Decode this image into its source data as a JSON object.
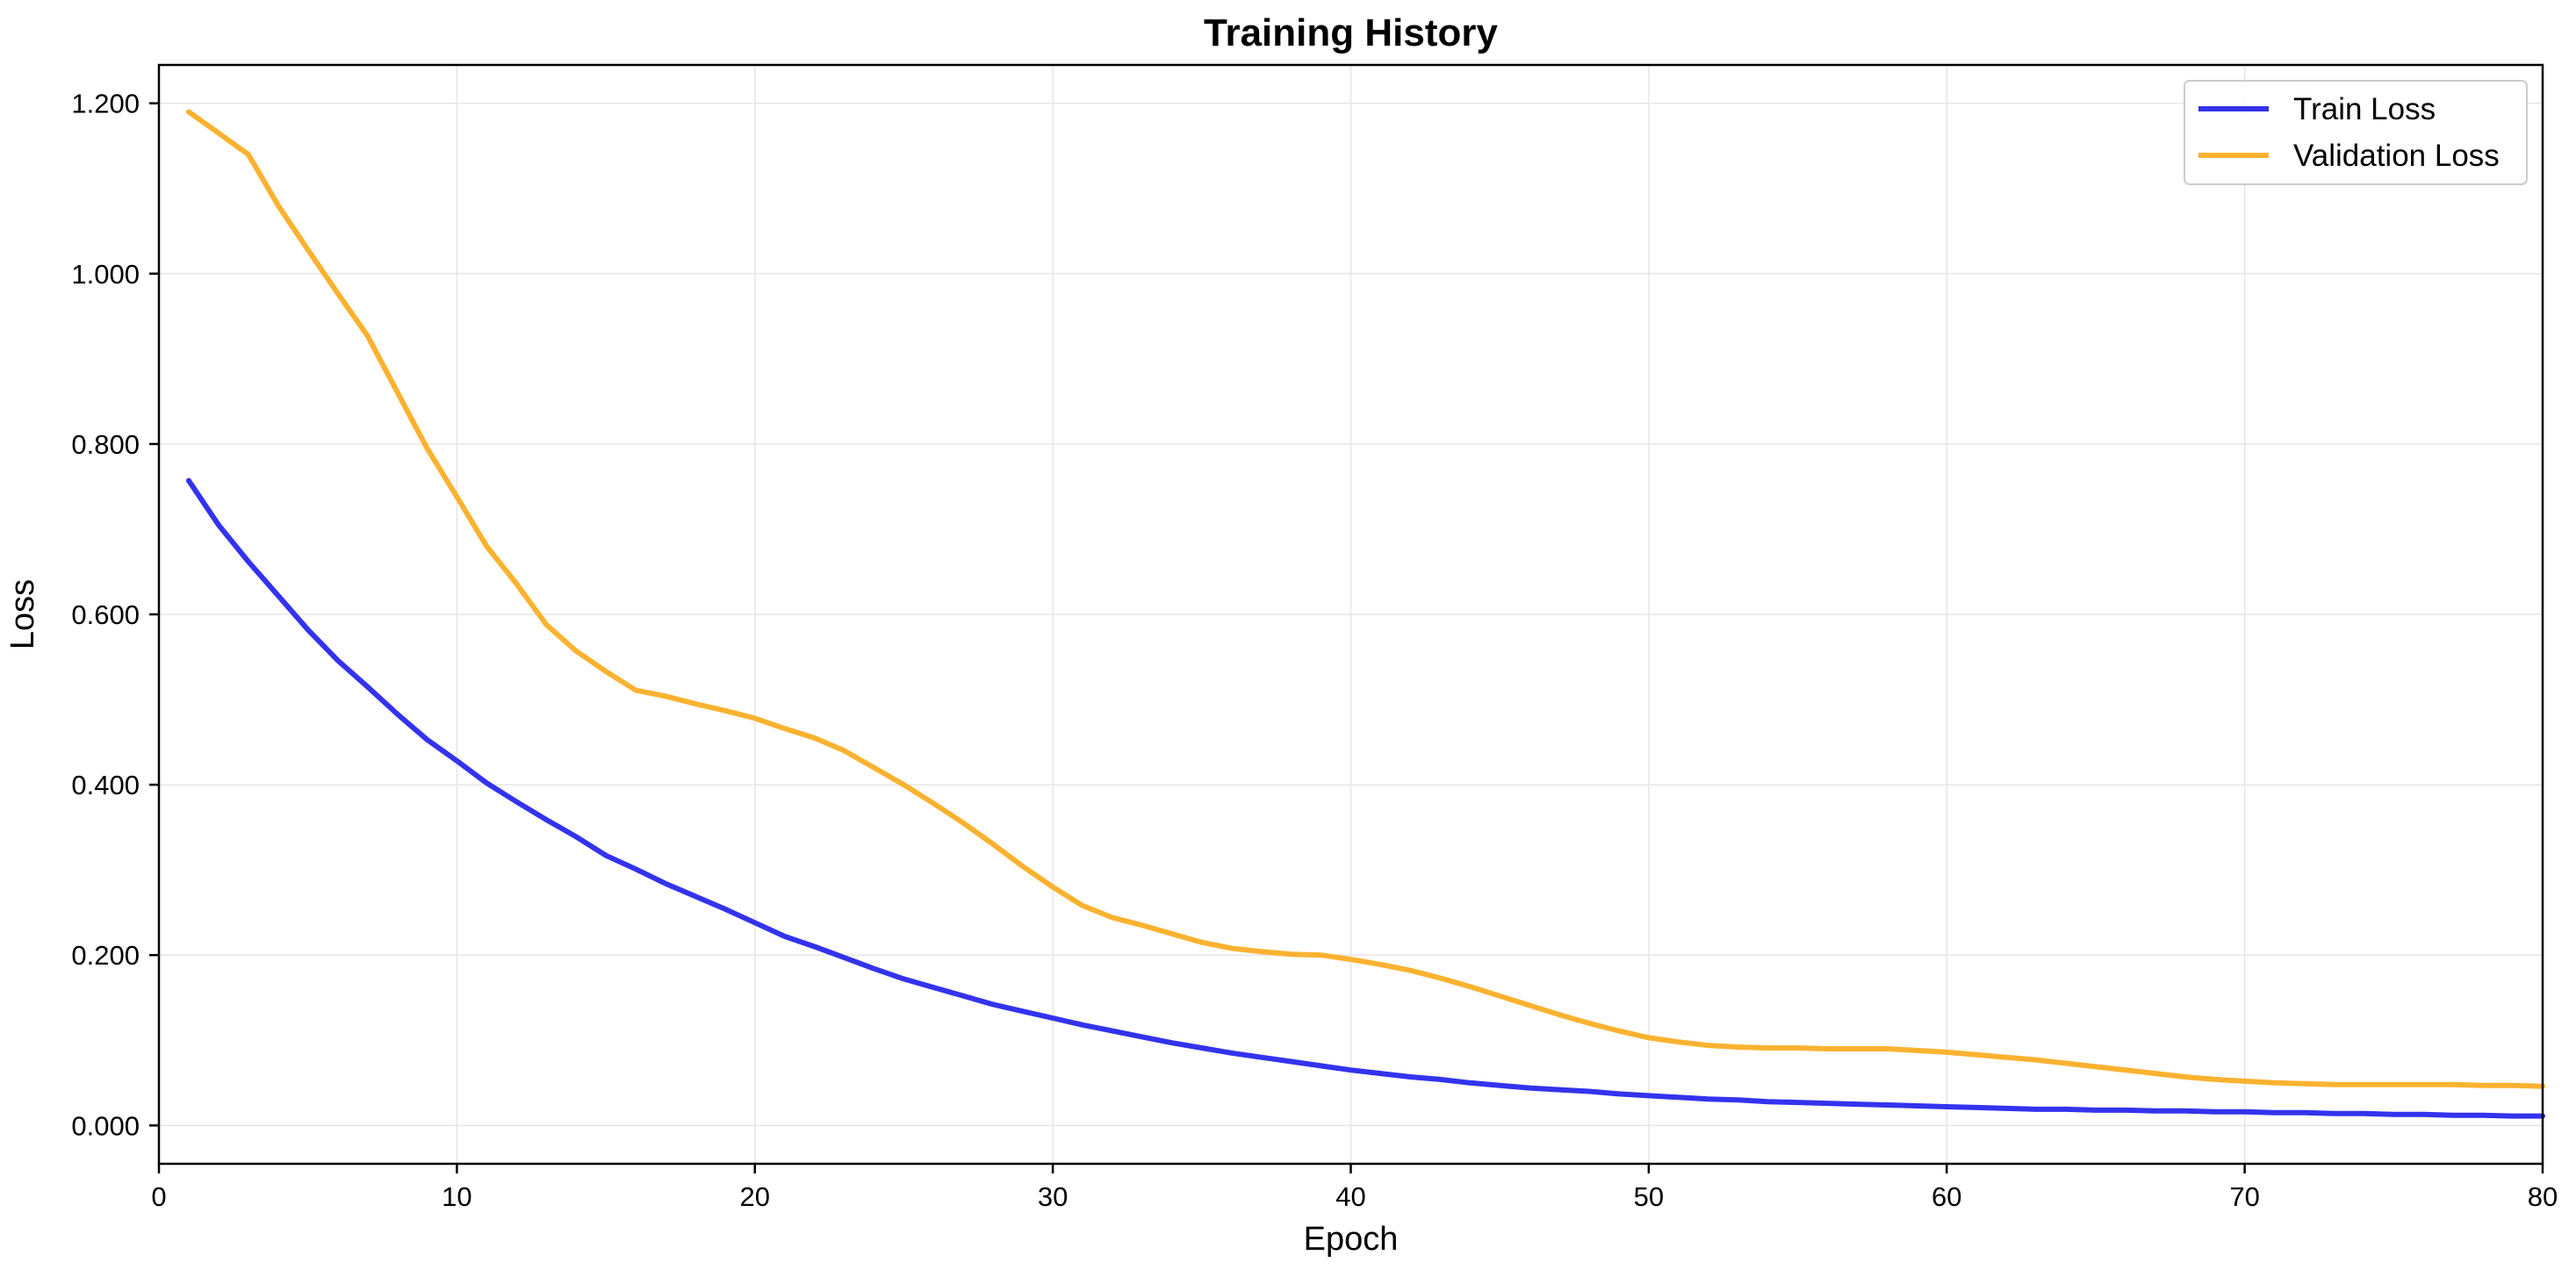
{
  "chart_data": {
    "type": "line",
    "title": "Training History",
    "xlabel": "Epoch",
    "ylabel": "Loss",
    "xlim": [
      0,
      80
    ],
    "ylim": [
      -0.045,
      1.245
    ],
    "x_ticks": [
      0,
      10,
      20,
      30,
      40,
      50,
      60,
      70,
      80
    ],
    "y_ticks": [
      0.0,
      0.2,
      0.4,
      0.6,
      0.8,
      1.0,
      1.2
    ],
    "x_tick_labels": [
      "0",
      "10",
      "20",
      "30",
      "40",
      "50",
      "60",
      "70",
      "80"
    ],
    "y_tick_labels": [
      "0.000",
      "0.200",
      "0.400",
      "0.600",
      "0.800",
      "1.000",
      "1.200"
    ],
    "grid": true,
    "legend_position": "top-right",
    "x": [
      1,
      2,
      3,
      4,
      5,
      6,
      7,
      8,
      9,
      10,
      11,
      12,
      13,
      14,
      15,
      16,
      17,
      18,
      19,
      20,
      21,
      22,
      23,
      24,
      25,
      26,
      27,
      28,
      29,
      30,
      31,
      32,
      33,
      34,
      35,
      36,
      37,
      38,
      39,
      40,
      41,
      42,
      43,
      44,
      45,
      46,
      47,
      48,
      49,
      50,
      51,
      52,
      53,
      54,
      55,
      56,
      57,
      58,
      59,
      60,
      61,
      62,
      63,
      64,
      65,
      66,
      67,
      68,
      69,
      70,
      71,
      72,
      73,
      74,
      75,
      76,
      77,
      78,
      79,
      80
    ],
    "series": [
      {
        "name": "Train Loss",
        "color": "#3333ee",
        "values": [
          0.757,
          0.705,
          0.662,
          0.622,
          0.582,
          0.546,
          0.515,
          0.483,
          0.453,
          0.428,
          0.402,
          0.38,
          0.359,
          0.339,
          0.317,
          0.301,
          0.284,
          0.269,
          0.254,
          0.238,
          0.222,
          0.21,
          0.197,
          0.184,
          0.172,
          0.162,
          0.152,
          0.142,
          0.134,
          0.126,
          0.118,
          0.111,
          0.104,
          0.097,
          0.091,
          0.085,
          0.08,
          0.075,
          0.07,
          0.065,
          0.061,
          0.057,
          0.054,
          0.05,
          0.047,
          0.044,
          0.042,
          0.04,
          0.037,
          0.035,
          0.033,
          0.031,
          0.03,
          0.028,
          0.027,
          0.026,
          0.025,
          0.024,
          0.023,
          0.022,
          0.021,
          0.02,
          0.019,
          0.019,
          0.018,
          0.018,
          0.017,
          0.017,
          0.016,
          0.016,
          0.015,
          0.015,
          0.014,
          0.014,
          0.013,
          0.013,
          0.012,
          0.012,
          0.011,
          0.011
        ]
      },
      {
        "name": "Validation Loss",
        "color": "#fbb230",
        "values": [
          1.19,
          1.165,
          1.14,
          1.08,
          1.028,
          0.977,
          0.927,
          0.861,
          0.795,
          0.738,
          0.68,
          0.636,
          0.588,
          0.557,
          0.533,
          0.511,
          0.504,
          0.495,
          0.487,
          0.478,
          0.466,
          0.455,
          0.44,
          0.42,
          0.4,
          0.378,
          0.355,
          0.33,
          0.304,
          0.28,
          0.258,
          0.244,
          0.235,
          0.225,
          0.215,
          0.208,
          0.204,
          0.201,
          0.2,
          0.195,
          0.189,
          0.182,
          0.173,
          0.163,
          0.152,
          0.141,
          0.13,
          0.12,
          0.111,
          0.103,
          0.098,
          0.094,
          0.092,
          0.091,
          0.091,
          0.09,
          0.09,
          0.09,
          0.088,
          0.086,
          0.083,
          0.08,
          0.077,
          0.073,
          0.069,
          0.065,
          0.061,
          0.057,
          0.054,
          0.052,
          0.05,
          0.049,
          0.048,
          0.048,
          0.048,
          0.048,
          0.048,
          0.047,
          0.047,
          0.046
        ]
      }
    ]
  }
}
